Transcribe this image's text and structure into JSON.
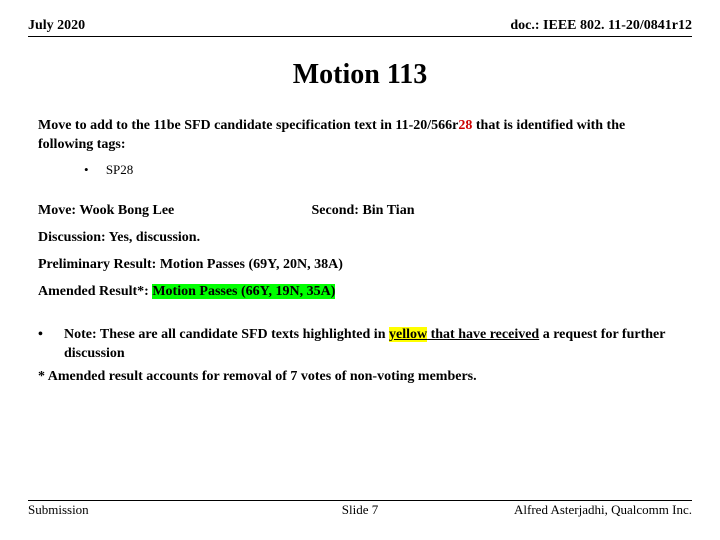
{
  "header": {
    "date": "July 2020",
    "doc": "doc.: IEEE 802. 11-20/0841r12"
  },
  "title": "Motion 113",
  "motion": {
    "part1": "Move to add to the 11be SFD candidate specification text in 11-20/566r",
    "rev": "28",
    "part2": " that is identified with the following tags:"
  },
  "sp": {
    "bullet": "•",
    "label": "SP28"
  },
  "mover": {
    "label": "Move: ",
    "name": "Wook Bong Lee"
  },
  "seconder": {
    "label": "Second: ",
    "name": "Bin Tian"
  },
  "discussion": {
    "label": "Discussion: ",
    "text": "Yes, discussion."
  },
  "prelim": {
    "label": "Preliminary Result: ",
    "text": "Motion Passes (69Y, 20N, 38A)"
  },
  "amended": {
    "label": "Amended Result*: ",
    "text": "Motion Passes (66Y, 19N, 35A)"
  },
  "note": {
    "bullet": "•",
    "t1": "Note: These are all candidate SFD texts highlighted in ",
    "yellow": "yellow",
    "t2": " that have received",
    "t3": " a request for further discussion"
  },
  "amend_foot": "* Amended result accounts for removal of 7 votes of non-voting members.",
  "footer": {
    "left": "Submission",
    "center": "Slide 7",
    "right": "Alfred Asterjadhi, Qualcomm Inc."
  }
}
